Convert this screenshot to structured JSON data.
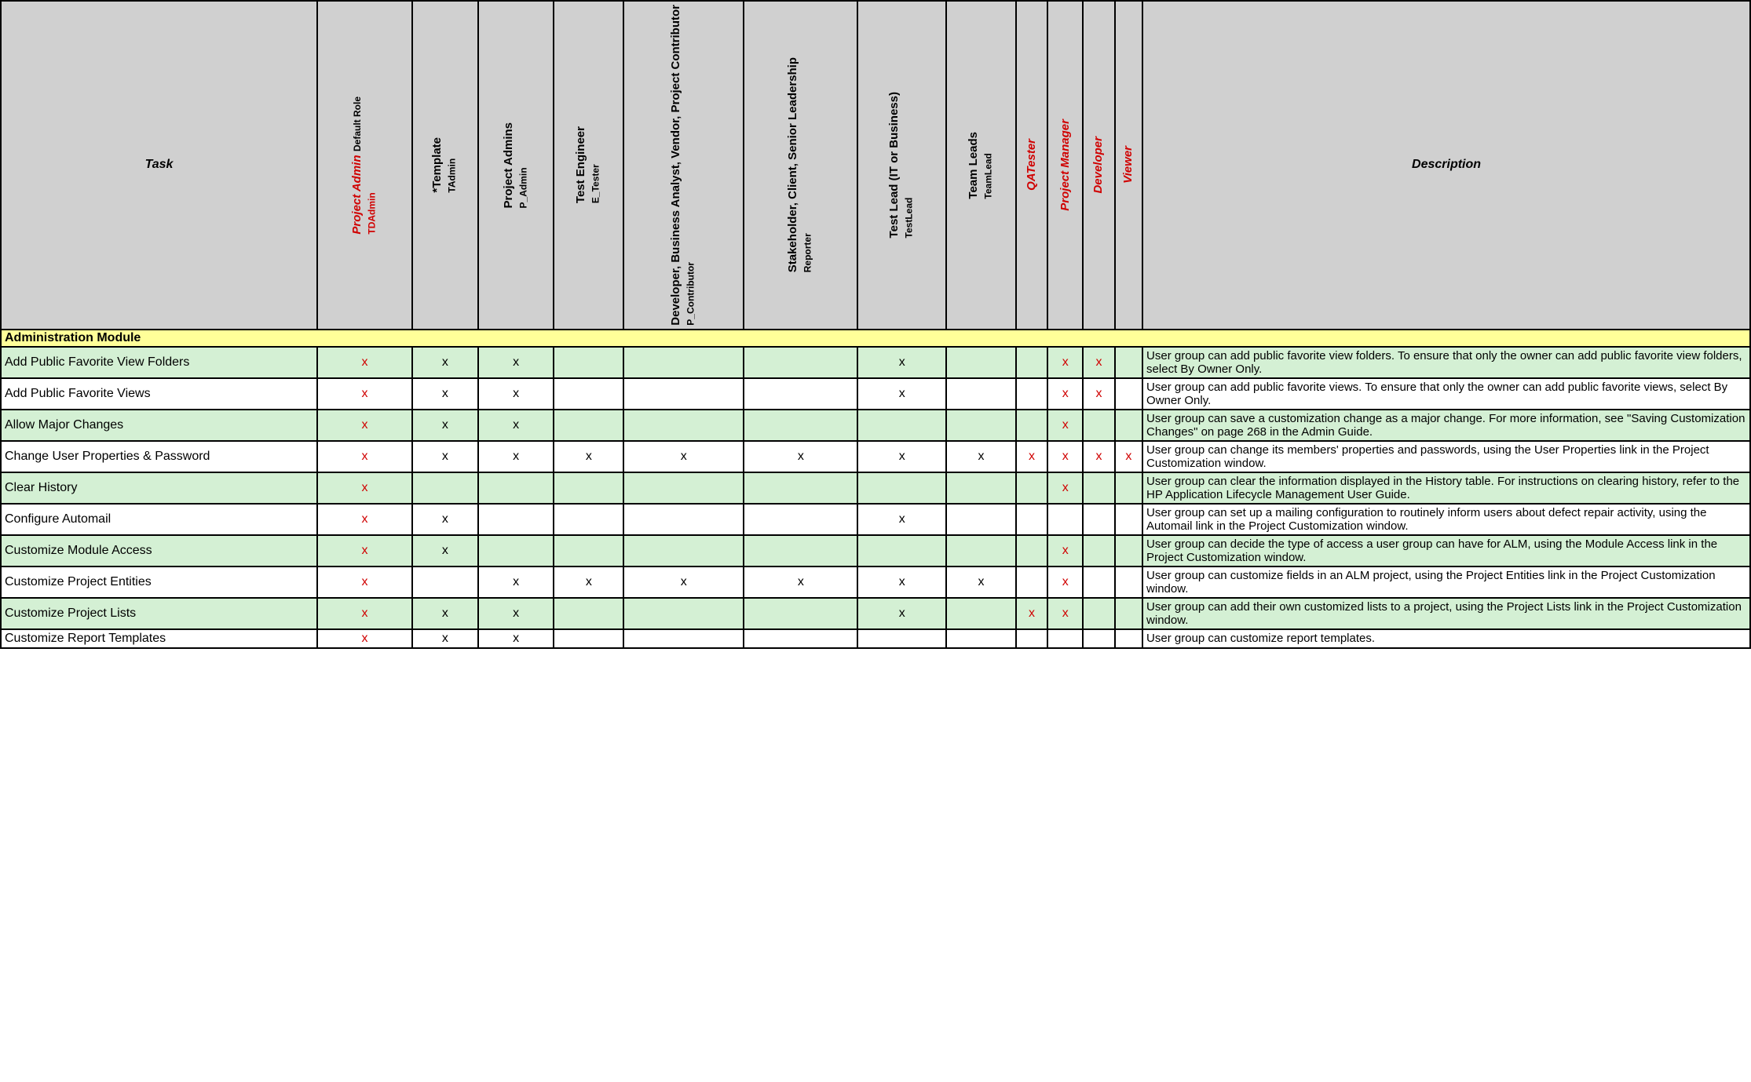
{
  "headers": {
    "task": "Task",
    "description": "Description"
  },
  "roles": [
    {
      "main": "Project Admin",
      "sub": "Default Role",
      "code": "TDAdmin",
      "red": true,
      "col": "c-role-w1"
    },
    {
      "main": "*Template",
      "sub": "",
      "code": "TAdmin",
      "red": false,
      "col": "c-role-w2"
    },
    {
      "main": "Project Admins",
      "sub": "",
      "code": "P_Admin",
      "red": false,
      "col": "c-role-w3"
    },
    {
      "main": "Test Engineer",
      "sub": "",
      "code": "E_Tester",
      "red": false,
      "col": "c-role-w4"
    },
    {
      "main": "Developer, Business Analyst, Vendor, Project Contributor",
      "sub": "",
      "code": "P_Contributor",
      "red": false,
      "col": "c-role-w5"
    },
    {
      "main": "Stakeholder, Client, Senior Leadership",
      "sub": "",
      "code": "Reporter",
      "red": false,
      "col": "c-role-w6"
    },
    {
      "main": "Test Lead (IT or Business)",
      "sub": "",
      "code": "TestLead",
      "red": false,
      "col": "c-role-w7"
    },
    {
      "main": "Team Leads",
      "sub": "",
      "code": "TeamLead",
      "red": false,
      "col": "c-role-w8"
    },
    {
      "main": "QATester",
      "sub": "",
      "code": "",
      "red": true,
      "col": "c-role-n1"
    },
    {
      "main": "Project Manager",
      "sub": "",
      "code": "",
      "red": true,
      "col": "c-role-n2"
    },
    {
      "main": "Developer",
      "sub": "",
      "code": "",
      "red": true,
      "col": "c-role-n3"
    },
    {
      "main": "Viewer",
      "sub": "",
      "code": "",
      "red": true,
      "col": "c-role-n4"
    }
  ],
  "section": "Administration Module",
  "rows": [
    {
      "task": "Add Public  Favorite View Folders",
      "marks": [
        "r",
        "b",
        "b",
        "",
        "",
        "",
        "b",
        "",
        "",
        "r",
        "r",
        ""
      ],
      "desc": "User group can  add  public favorite view folders. To ensure that only the  owner can  add  public favorite view  folders, select  By Owner Only."
    },
    {
      "task": "Add Public  Favorite Views",
      "marks": [
        "r",
        "b",
        "b",
        "",
        "",
        "",
        "b",
        "",
        "",
        "r",
        "r",
        ""
      ],
      "desc": "User group can  add  public favorite views.  To ensure that only the owner can add  public favorite views, select  By Owner Only."
    },
    {
      "task": "Allow Major Changes",
      "marks": [
        "r",
        "b",
        "b",
        "",
        "",
        "",
        "",
        "",
        "",
        "r",
        "",
        ""
      ],
      "desc": "User group can  save a customization change as a major change. For more information, see \"Saving Customization Changes\" on  page  268 in the Admin Guide."
    },
    {
      "task": "Change User Properties & Password",
      "marks": [
        "r",
        "b",
        "b",
        "b",
        "b",
        "b",
        "b",
        "b",
        "r",
        "r",
        "r",
        "r"
      ],
      "desc": "User group can  change its members' properties and passwords, using the  User Properties link  in the Project Customization window."
    },
    {
      "task": "Clear  History",
      "marks": [
        "r",
        "",
        "",
        "",
        "",
        "",
        "",
        "",
        "",
        "r",
        "",
        ""
      ],
      "desc": "User group can  clear  the  information displayed in the History table. For instructions on clearing history, refer to the  HP Application  Lifecycle Management User Guide."
    },
    {
      "task": "Configure Automail",
      "marks": [
        "r",
        "b",
        "",
        "",
        "",
        "",
        "b",
        "",
        "",
        "",
        "",
        ""
      ],
      "desc": "User group can  set up a mailing configuration to routinely inform users  about defect repair activity, using the Automail link  in the Project Customization window."
    },
    {
      "task": "Customize Module Access",
      "marks": [
        "r",
        "b",
        "",
        "",
        "",
        "",
        "",
        "",
        "",
        "r",
        "",
        ""
      ],
      "desc": "User group can  decide the  type  of access  a user group can have for ALM, using the  Module Access link in the Project Customization window."
    },
    {
      "task": "Customize Project Entities",
      "marks": [
        "r",
        "",
        "b",
        "b",
        "b",
        "b",
        "b",
        "b",
        "",
        "r",
        "",
        ""
      ],
      "desc": "User group can  customize fields  in an  ALM project, using the Project Entities link  in the Project Customization window."
    },
    {
      "task": "Customize Project Lists",
      "marks": [
        "r",
        "b",
        "b",
        "",
        "",
        "",
        "b",
        "",
        "r",
        "r",
        "",
        ""
      ],
      "desc": "User group can  add  their own customized lists to a project, using the  Project Lists link  in the Project Customization window."
    },
    {
      "task": "Customize Report Templates",
      "marks": [
        "r",
        "b",
        "b",
        "",
        "",
        "",
        "",
        "",
        "",
        "",
        "",
        ""
      ],
      "desc": "User group can  customize report templates."
    }
  ],
  "mark_glyph": "x",
  "colors": {
    "even_row": "#d4f0d4",
    "odd_row": "#ffffff",
    "section": "#ffff99",
    "header_bg": "#d0d0d0",
    "red": "#d00000",
    "black": "#000000"
  }
}
